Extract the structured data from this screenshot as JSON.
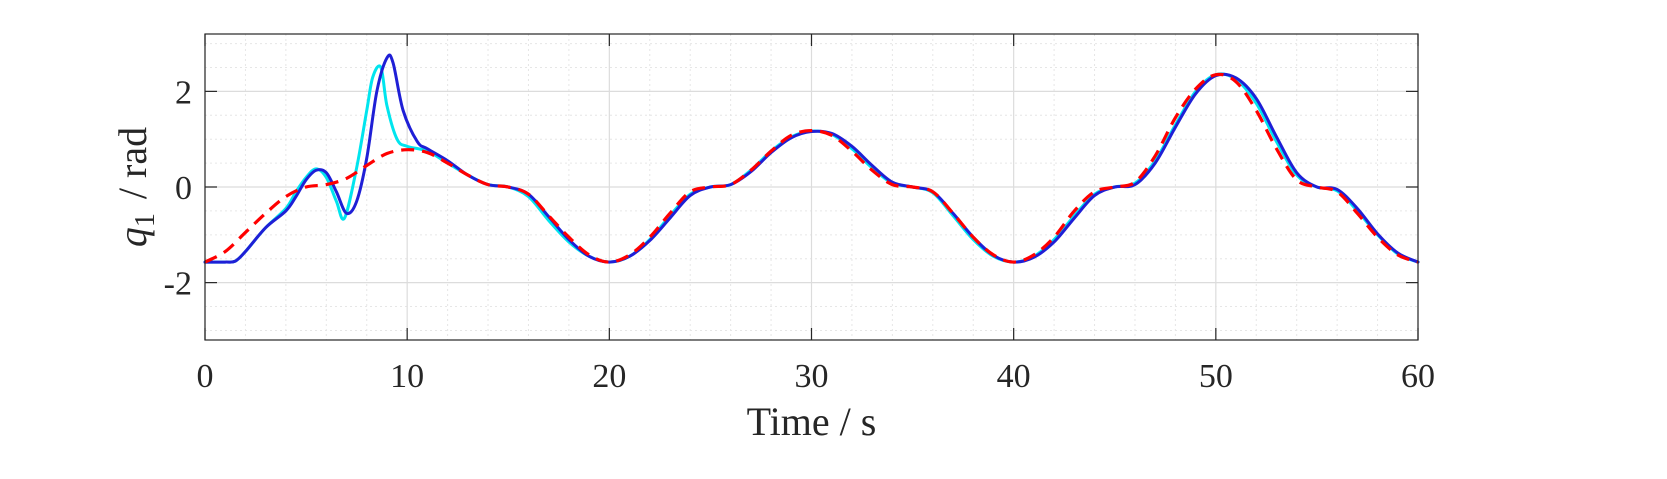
{
  "chart_data": {
    "type": "line",
    "xlabel": "Time / s",
    "ylabel": {
      "symbol": "q",
      "subscript": "1",
      "unit": "/ rad"
    },
    "xlim": [
      0,
      60
    ],
    "ylim": [
      -3.2,
      3.2
    ],
    "xticks": [
      0,
      10,
      20,
      30,
      40,
      50,
      60
    ],
    "yticks": [
      -2,
      0,
      2
    ],
    "ytick_labels": [
      "-2",
      "0",
      "2"
    ],
    "grid": true,
    "minor_grid": true,
    "series": [
      {
        "color": "#ff0000",
        "style": "dashed",
        "x": [
          0,
          1,
          2,
          3,
          4,
          5,
          6,
          7,
          8,
          9,
          10,
          11,
          12,
          13,
          14,
          15,
          16,
          17,
          18,
          19,
          20,
          21,
          22,
          23,
          24,
          25,
          26,
          27,
          28,
          29,
          30,
          31,
          32,
          33,
          34,
          35,
          36,
          37,
          38,
          39,
          40,
          41,
          42,
          43,
          44,
          45,
          46,
          47,
          48,
          49,
          50,
          51,
          52,
          53,
          54,
          55,
          56,
          57,
          58,
          59,
          60
        ],
        "y": [
          -1.57,
          -1.35,
          -0.95,
          -0.55,
          -0.2,
          0.0,
          0.05,
          0.18,
          0.45,
          0.7,
          0.78,
          0.72,
          0.5,
          0.25,
          0.05,
          0.0,
          -0.15,
          -0.6,
          -1.05,
          -1.42,
          -1.57,
          -1.42,
          -1.05,
          -0.55,
          -0.1,
          0.0,
          0.05,
          0.35,
          0.75,
          1.08,
          1.18,
          1.08,
          0.75,
          0.35,
          0.05,
          0.0,
          -0.1,
          -0.55,
          -1.05,
          -1.42,
          -1.57,
          -1.42,
          -1.05,
          -0.5,
          -0.1,
          0.0,
          0.1,
          0.65,
          1.45,
          2.05,
          2.35,
          2.2,
          1.6,
          0.8,
          0.15,
          0.0,
          -0.1,
          -0.55,
          -1.05,
          -1.42,
          -1.57
        ]
      },
      {
        "color": "#00e5ee",
        "style": "solid",
        "x": [
          0,
          1,
          1.5,
          2,
          3,
          4,
          4.5,
          5,
          5.5,
          6,
          6.5,
          6.9,
          7.5,
          8,
          8.3,
          8.7,
          9,
          9.5,
          10,
          11,
          12,
          13,
          14,
          15,
          16,
          17,
          18,
          19,
          20,
          21,
          22,
          23,
          24,
          25,
          26,
          27,
          28,
          29,
          30,
          31,
          32,
          33,
          34,
          35,
          36,
          37,
          38,
          39,
          40,
          41,
          42,
          43,
          44,
          45,
          46,
          47,
          48,
          49,
          50,
          51,
          52,
          53,
          54,
          55,
          56,
          57,
          58,
          59,
          60
        ],
        "y": [
          -1.57,
          -1.57,
          -1.55,
          -1.35,
          -0.85,
          -0.45,
          -0.1,
          0.2,
          0.38,
          0.2,
          -0.3,
          -0.65,
          0.4,
          1.6,
          2.3,
          2.5,
          1.7,
          1.0,
          0.85,
          0.75,
          0.5,
          0.25,
          0.05,
          0.0,
          -0.2,
          -0.7,
          -1.15,
          -1.45,
          -1.57,
          -1.45,
          -1.1,
          -0.6,
          -0.15,
          0.0,
          0.05,
          0.35,
          0.75,
          1.05,
          1.17,
          1.1,
          0.8,
          0.4,
          0.08,
          0.0,
          -0.12,
          -0.6,
          -1.1,
          -1.45,
          -1.57,
          -1.45,
          -1.1,
          -0.6,
          -0.15,
          0.0,
          0.08,
          0.55,
          1.3,
          2.0,
          2.35,
          2.25,
          1.75,
          0.95,
          0.25,
          0.0,
          -0.08,
          -0.5,
          -1.0,
          -1.4,
          -1.57
        ]
      },
      {
        "color": "#1f1fd6",
        "style": "solid",
        "x": [
          0,
          1,
          1.5,
          2,
          3,
          4,
          4.5,
          5,
          5.5,
          6,
          6.5,
          7,
          7.5,
          8,
          8.5,
          9,
          9.3,
          9.8,
          10.5,
          11,
          12,
          13,
          14,
          15,
          16,
          17,
          18,
          19,
          20,
          21,
          22,
          23,
          24,
          25,
          26,
          27,
          28,
          29,
          30,
          31,
          32,
          33,
          34,
          35,
          36,
          37,
          38,
          39,
          40,
          41,
          42,
          43,
          44,
          45,
          46,
          47,
          48,
          49,
          50,
          51,
          52,
          53,
          54,
          55,
          56,
          57,
          58,
          59,
          60
        ],
        "y": [
          -1.57,
          -1.57,
          -1.55,
          -1.35,
          -0.85,
          -0.5,
          -0.2,
          0.15,
          0.35,
          0.3,
          -0.1,
          -0.55,
          -0.3,
          0.6,
          2.0,
          2.7,
          2.6,
          1.6,
          0.95,
          0.8,
          0.55,
          0.25,
          0.05,
          0.0,
          -0.15,
          -0.62,
          -1.1,
          -1.45,
          -1.57,
          -1.45,
          -1.12,
          -0.65,
          -0.18,
          0.0,
          0.05,
          0.32,
          0.72,
          1.03,
          1.16,
          1.12,
          0.85,
          0.45,
          0.1,
          0.0,
          -0.1,
          -0.55,
          -1.05,
          -1.43,
          -1.57,
          -1.47,
          -1.15,
          -0.65,
          -0.18,
          0.0,
          0.05,
          0.5,
          1.25,
          1.95,
          2.33,
          2.28,
          1.85,
          1.05,
          0.3,
          0.0,
          -0.05,
          -0.45,
          -0.98,
          -1.38,
          -1.57
        ]
      }
    ]
  }
}
